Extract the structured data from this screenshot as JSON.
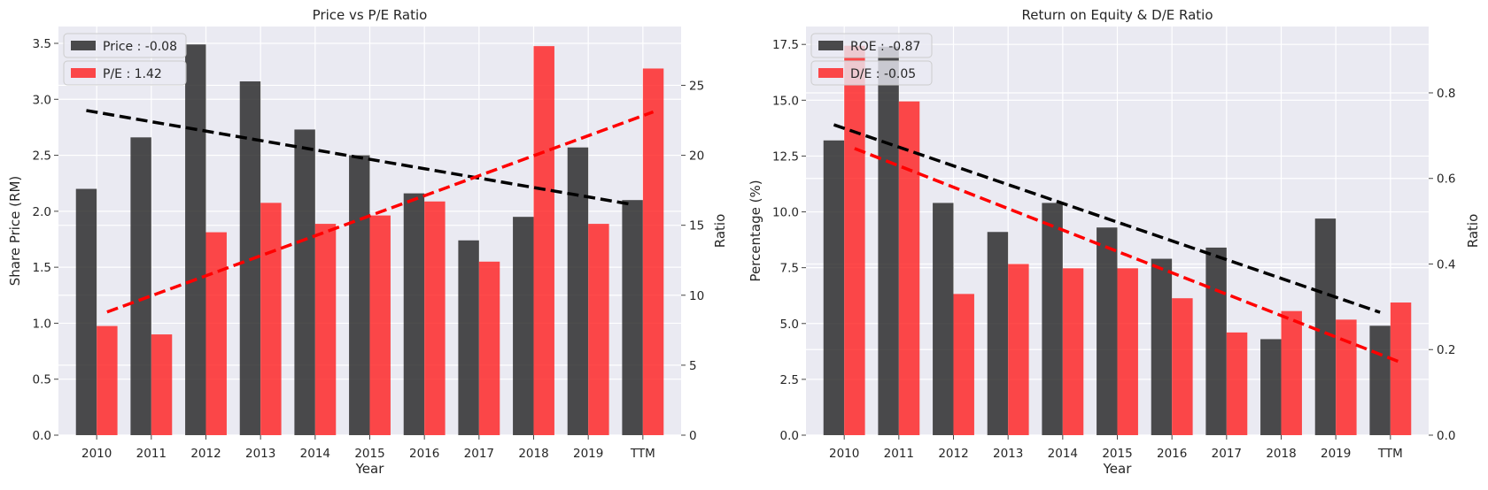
{
  "colors": {
    "background": "#eaeaf2",
    "grid": "#ffffff",
    "dark_bar": "#262626",
    "red_bar": "#ff2222",
    "dark_trend": "#000000",
    "red_trend": "#ff0000"
  },
  "chart_data": [
    {
      "type": "bar",
      "title": "Price vs P/E Ratio",
      "xlabel": "Year",
      "ylabel": "Share Price (RM)",
      "ylabel_right": "Ratio",
      "categories": [
        "2010",
        "2011",
        "2012",
        "2013",
        "2014",
        "2015",
        "2016",
        "2017",
        "2018",
        "2019",
        "TTM"
      ],
      "ylim": [
        0,
        3.65
      ],
      "ylim_right": [
        0,
        29.2
      ],
      "yticks": [
        "0.0",
        "0.5",
        "1.0",
        "1.5",
        "2.0",
        "2.5",
        "3.0",
        "3.5"
      ],
      "yticks_right": [
        "0",
        "5",
        "10",
        "15",
        "20",
        "25"
      ],
      "legend_position": "upper-left",
      "grid": true,
      "series": [
        {
          "name": "Price : -0.08",
          "axis": "left",
          "values": [
            2.2,
            2.66,
            3.49,
            3.16,
            2.73,
            2.5,
            2.16,
            1.74,
            1.95,
            2.57,
            2.1
          ],
          "trend": [
            2.9,
            2.06
          ]
        },
        {
          "name": "P/E : 1.42",
          "axis": "right",
          "values": [
            7.8,
            7.2,
            14.5,
            16.6,
            15.1,
            15.7,
            16.7,
            12.4,
            27.8,
            15.1,
            26.2
          ],
          "trend": [
            8.8,
            23.1
          ]
        }
      ]
    },
    {
      "type": "bar",
      "title": "Return on Equity & D/E Ratio",
      "xlabel": "Year",
      "ylabel": "Percentage (%)",
      "ylabel_right": "Ratio",
      "categories": [
        "2010",
        "2011",
        "2012",
        "2013",
        "2014",
        "2015",
        "2016",
        "2017",
        "2018",
        "2019",
        "TTM"
      ],
      "ylim": [
        0,
        18.3
      ],
      "ylim_right": [
        0,
        0.955
      ],
      "yticks": [
        "0.0",
        "2.5",
        "5.0",
        "7.5",
        "10.0",
        "12.5",
        "15.0",
        "17.5"
      ],
      "yticks_right": [
        "0.0",
        "0.2",
        "0.4",
        "0.6",
        "0.8"
      ],
      "legend_position": "upper-left",
      "grid": true,
      "series": [
        {
          "name": "ROE : -0.87",
          "axis": "left",
          "values": [
            13.2,
            17.4,
            10.4,
            9.1,
            10.4,
            9.3,
            7.9,
            8.4,
            4.3,
            9.7,
            4.9
          ],
          "trend": [
            13.9,
            5.5
          ]
        },
        {
          "name": "D/E : -0.05",
          "axis": "right",
          "values": [
            0.91,
            0.78,
            0.33,
            0.4,
            0.39,
            0.39,
            0.32,
            0.24,
            0.29,
            0.27,
            0.31
          ],
          "trend": [
            0.67,
            0.17
          ]
        }
      ]
    }
  ]
}
